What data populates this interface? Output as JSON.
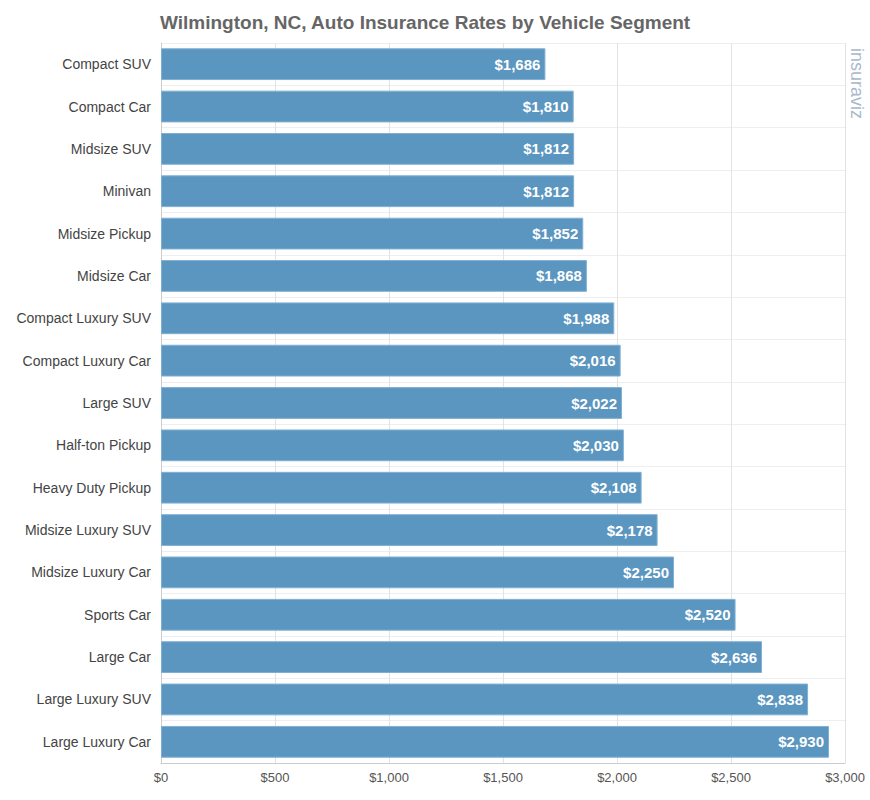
{
  "chart_data": {
    "type": "bar",
    "orientation": "horizontal",
    "title": "Wilmington, NC, Auto Insurance Rates by Vehicle Segment",
    "annotation": "insuraviz",
    "categories": [
      "Compact SUV",
      "Compact Car",
      "Midsize SUV",
      "Minivan",
      "Midsize Pickup",
      "Midsize Car",
      "Compact Luxury SUV",
      "Compact Luxury Car",
      "Large SUV",
      "Half-ton Pickup",
      "Heavy Duty Pickup",
      "Midsize Luxury SUV",
      "Midsize Luxury Car",
      "Sports Car",
      "Large Car",
      "Large Luxury SUV",
      "Large Luxury Car"
    ],
    "values": [
      1686,
      1810,
      1812,
      1812,
      1852,
      1868,
      1988,
      2016,
      2022,
      2030,
      2108,
      2178,
      2250,
      2520,
      2636,
      2838,
      2930
    ],
    "value_labels": [
      "$1,686",
      "$1,810",
      "$1,812",
      "$1,812",
      "$1,852",
      "$1,868",
      "$1,988",
      "$2,016",
      "$2,022",
      "$2,030",
      "$2,108",
      "$2,178",
      "$2,250",
      "$2,520",
      "$2,636",
      "$2,838",
      "$2,930"
    ],
    "data_labels": true,
    "color": "#5b96c0",
    "xlim": [
      0,
      3000
    ],
    "xticks": [
      {
        "value": 0,
        "label": "$0"
      },
      {
        "value": 500,
        "label": "$500"
      },
      {
        "value": 1000,
        "label": "$1,000"
      },
      {
        "value": 1500,
        "label": "$1,500"
      },
      {
        "value": 2000,
        "label": "$2,000"
      },
      {
        "value": 2500,
        "label": "$2,500"
      },
      {
        "value": 3000,
        "label": "$3,000"
      }
    ],
    "grid": true
  }
}
